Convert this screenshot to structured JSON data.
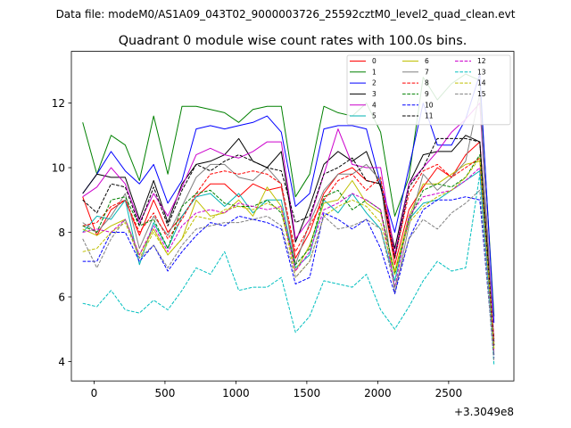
{
  "header": {
    "data_file": "Data file: modeM0/AS1A09_043T02_9000003726_25592cztM0_level2_quad_clean.evt"
  },
  "chart_data": {
    "type": "line",
    "title": "Quadrant 0 module wise count rates with 100.0s bins.",
    "xlabel": "",
    "ylabel": "",
    "x_offset_label": "+3.3049e8",
    "xlim": [
      -160,
      2960
    ],
    "ylim": [
      3.4,
      13.6
    ],
    "x_ticks": [
      0,
      500,
      1000,
      1500,
      2000,
      2500
    ],
    "y_ticks": [
      4,
      6,
      8,
      10,
      12
    ],
    "legend_position": "top-right",
    "x": [
      -80,
      20,
      120,
      220,
      320,
      420,
      520,
      620,
      720,
      820,
      920,
      1020,
      1120,
      1220,
      1320,
      1420,
      1520,
      1620,
      1720,
      1820,
      1920,
      2020,
      2120,
      2220,
      2320,
      2420,
      2520,
      2620,
      2720,
      2820
    ],
    "series": [
      {
        "name": "0",
        "color": "#ff0000",
        "dash": "solid",
        "values": [
          9.1,
          7.9,
          8.7,
          9.0,
          7.9,
          9.0,
          8.0,
          8.5,
          9.1,
          9.5,
          9.5,
          9.1,
          9.5,
          9.3,
          9.4,
          7.2,
          8.0,
          9.2,
          9.8,
          10.0,
          9.6,
          9.5,
          7.0,
          8.7,
          9.4,
          10.0,
          9.7,
          10.4,
          10.8,
          4.6
        ]
      },
      {
        "name": "1",
        "color": "#008000",
        "dash": "solid",
        "values": [
          11.4,
          9.8,
          11.0,
          10.7,
          9.6,
          11.6,
          9.8,
          11.9,
          11.9,
          11.8,
          11.7,
          11.4,
          11.8,
          11.9,
          11.9,
          9.1,
          9.8,
          11.9,
          11.7,
          11.6,
          12.0,
          11.1,
          8.5,
          9.7,
          12.8,
          12.1,
          12.6,
          12.9,
          12.7,
          5.4
        ]
      },
      {
        "name": "2",
        "color": "#0000ff",
        "dash": "solid",
        "values": [
          9.2,
          9.8,
          10.5,
          9.9,
          9.5,
          10.1,
          8.9,
          9.6,
          11.2,
          11.3,
          11.2,
          11.3,
          11.4,
          11.6,
          11.1,
          8.8,
          9.2,
          11.2,
          11.3,
          11.3,
          11.2,
          9.5,
          8.0,
          10.0,
          12.0,
          10.7,
          10.7,
          11.5,
          12.9,
          5.2
        ]
      },
      {
        "name": "3",
        "color": "#000000",
        "dash": "solid",
        "values": [
          9.2,
          9.8,
          9.7,
          9.7,
          8.4,
          9.6,
          8.3,
          9.5,
          10.1,
          10.2,
          10.4,
          10.9,
          10.2,
          10.0,
          10.5,
          7.7,
          8.8,
          10.1,
          10.5,
          10.2,
          10.5,
          9.4,
          7.5,
          9.5,
          10.4,
          10.5,
          10.5,
          11.0,
          10.8,
          4.5
        ]
      },
      {
        "name": "4",
        "color": "#cc00cc",
        "dash": "solid",
        "values": [
          9.1,
          9.4,
          10.0,
          9.5,
          8.3,
          9.2,
          8.5,
          9.4,
          10.4,
          10.6,
          10.4,
          10.3,
          10.5,
          10.8,
          10.8,
          7.8,
          8.4,
          9.8,
          11.2,
          10.1,
          10.0,
          10.0,
          7.3,
          9.5,
          10.0,
          10.5,
          11.1,
          11.5,
          12.0,
          4.6
        ]
      },
      {
        "name": "5",
        "color": "#00b3b3",
        "dash": "solid",
        "values": [
          8.0,
          8.5,
          8.4,
          9.0,
          7.0,
          8.3,
          7.5,
          8.5,
          9.1,
          9.2,
          8.8,
          9.2,
          8.6,
          9.0,
          9.0,
          6.9,
          7.3,
          9.0,
          8.6,
          9.2,
          8.6,
          8.1,
          6.5,
          8.4,
          8.9,
          9.0,
          9.3,
          9.6,
          9.9,
          4.2
        ]
      },
      {
        "name": "6",
        "color": "#bfbf00",
        "dash": "solid",
        "values": [
          8.1,
          7.9,
          8.2,
          8.4,
          7.3,
          8.1,
          7.3,
          7.8,
          9.0,
          8.5,
          8.6,
          9.0,
          8.5,
          9.4,
          8.8,
          6.8,
          7.6,
          8.9,
          9.0,
          9.6,
          8.9,
          8.6,
          6.8,
          8.5,
          9.5,
          9.5,
          9.8,
          10.1,
          10.2,
          4.4
        ]
      },
      {
        "name": "7",
        "color": "#808080",
        "dash": "solid",
        "values": [
          8.3,
          8.0,
          8.5,
          9.2,
          7.5,
          8.5,
          7.9,
          8.8,
          9.7,
          10.1,
          10.1,
          9.7,
          9.6,
          10.0,
          9.5,
          7.0,
          8.3,
          9.3,
          9.8,
          9.8,
          10.1,
          9.6,
          6.1,
          8.2,
          9.8,
          9.3,
          9.7,
          10.2,
          12.3,
          4.2
        ]
      },
      {
        "name": "8",
        "color": "#ff0000",
        "dash": "dashed",
        "values": [
          8.2,
          8.3,
          8.8,
          9.0,
          8.0,
          8.6,
          7.8,
          8.4,
          9.2,
          9.8,
          9.9,
          9.8,
          9.9,
          9.8,
          9.5,
          7.4,
          8.2,
          9.0,
          9.6,
          9.8,
          9.3,
          9.7,
          7.2,
          9.2,
          9.9,
          10.1,
          9.7,
          10.0,
          10.3,
          4.7
        ]
      },
      {
        "name": "9",
        "color": "#008000",
        "dash": "dashed",
        "values": [
          8.2,
          8.0,
          9.0,
          9.1,
          8.2,
          8.4,
          7.5,
          8.8,
          9.2,
          9.3,
          8.9,
          8.8,
          8.8,
          9.0,
          8.6,
          7.0,
          7.5,
          9.1,
          9.3,
          8.7,
          9.0,
          8.7,
          6.7,
          8.4,
          9.3,
          9.5,
          9.4,
          9.7,
          10.4,
          4.5
        ]
      },
      {
        "name": "10",
        "color": "#0000ff",
        "dash": "dashed",
        "values": [
          7.1,
          7.1,
          8.0,
          8.0,
          7.1,
          7.6,
          6.8,
          7.4,
          7.9,
          8.3,
          8.2,
          8.5,
          8.4,
          8.3,
          8.1,
          6.4,
          6.6,
          8.6,
          8.4,
          8.1,
          8.4,
          7.5,
          6.1,
          7.8,
          8.7,
          9.0,
          9.0,
          9.1,
          9.0,
          4.1
        ]
      },
      {
        "name": "11",
        "color": "#000000",
        "dash": "dashed",
        "values": [
          9.0,
          8.6,
          9.5,
          9.4,
          8.2,
          9.4,
          8.2,
          9.3,
          10.1,
          9.9,
          10.2,
          10.4,
          10.2,
          10.0,
          9.9,
          8.3,
          8.5,
          9.8,
          10.0,
          10.3,
          9.6,
          9.5,
          7.2,
          9.4,
          10.0,
          10.9,
          10.9,
          10.9,
          10.8,
          4.5
        ]
      },
      {
        "name": "12",
        "color": "#cc00cc",
        "dash": "dashed",
        "values": [
          8.0,
          8.1,
          8.0,
          8.4,
          7.3,
          8.2,
          7.4,
          8.2,
          8.6,
          8.7,
          8.6,
          8.9,
          8.8,
          8.7,
          8.8,
          6.8,
          7.4,
          8.7,
          8.9,
          9.2,
          9.0,
          8.7,
          6.3,
          8.5,
          9.1,
          9.2,
          9.3,
          9.6,
          10.0,
          4.3
        ]
      },
      {
        "name": "13",
        "color": "#00bfbf",
        "dash": "dashed",
        "values": [
          5.8,
          5.7,
          6.2,
          5.6,
          5.5,
          5.9,
          5.6,
          6.2,
          6.9,
          6.7,
          7.4,
          6.2,
          6.3,
          6.3,
          6.6,
          4.9,
          5.4,
          6.5,
          6.4,
          6.3,
          6.7,
          5.6,
          5.0,
          5.7,
          6.5,
          7.1,
          6.8,
          6.9,
          9.8,
          3.9
        ]
      },
      {
        "name": "14",
        "color": "#bfbf00",
        "dash": "dashed",
        "values": [
          7.4,
          7.5,
          8.0,
          8.3,
          7.2,
          8.0,
          7.3,
          7.8,
          8.5,
          8.4,
          8.7,
          8.8,
          8.7,
          8.9,
          8.7,
          6.6,
          7.1,
          8.5,
          8.8,
          9.0,
          8.8,
          8.3,
          6.7,
          8.3,
          8.8,
          9.1,
          9.3,
          9.7,
          10.3,
          4.4
        ]
      },
      {
        "name": "15",
        "color": "#808080",
        "dash": "dashed",
        "values": [
          7.8,
          6.9,
          7.8,
          8.4,
          7.2,
          7.6,
          6.9,
          7.6,
          8.1,
          8.2,
          8.3,
          8.3,
          8.4,
          8.5,
          8.2,
          6.6,
          7.1,
          8.5,
          8.1,
          8.2,
          8.4,
          8.1,
          6.3,
          7.8,
          8.4,
          8.1,
          8.6,
          8.9,
          9.3,
          4.0
        ]
      }
    ]
  }
}
